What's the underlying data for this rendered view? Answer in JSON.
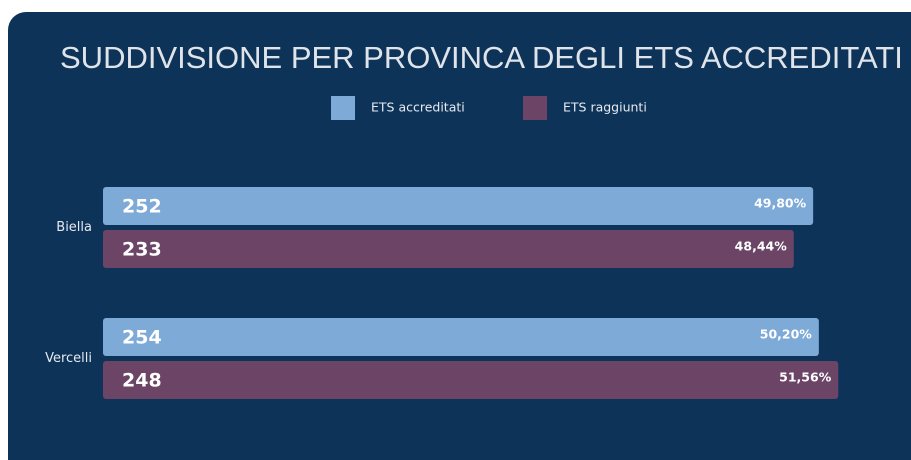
{
  "chart_data": {
    "type": "hbar",
    "title": "SUDDIVISIONE PER PROVINCA DEGLI ETS ACCREDITATI",
    "categories": [
      "Biella",
      "Vercelli"
    ],
    "series": [
      {
        "name": "ETS accreditati",
        "color": "#7eaad8",
        "values": [
          49.8,
          50.2
        ],
        "value_labels": [
          "49,80%",
          "50,20%"
        ],
        "counts": [
          "252",
          "254"
        ]
      },
      {
        "name": "ETS raggiunti",
        "color": "#6b4466",
        "values": [
          48.44,
          51.56
        ],
        "value_labels": [
          "48,44%",
          "51,56%"
        ],
        "counts": [
          "233",
          "248"
        ]
      }
    ],
    "legend": "top"
  }
}
